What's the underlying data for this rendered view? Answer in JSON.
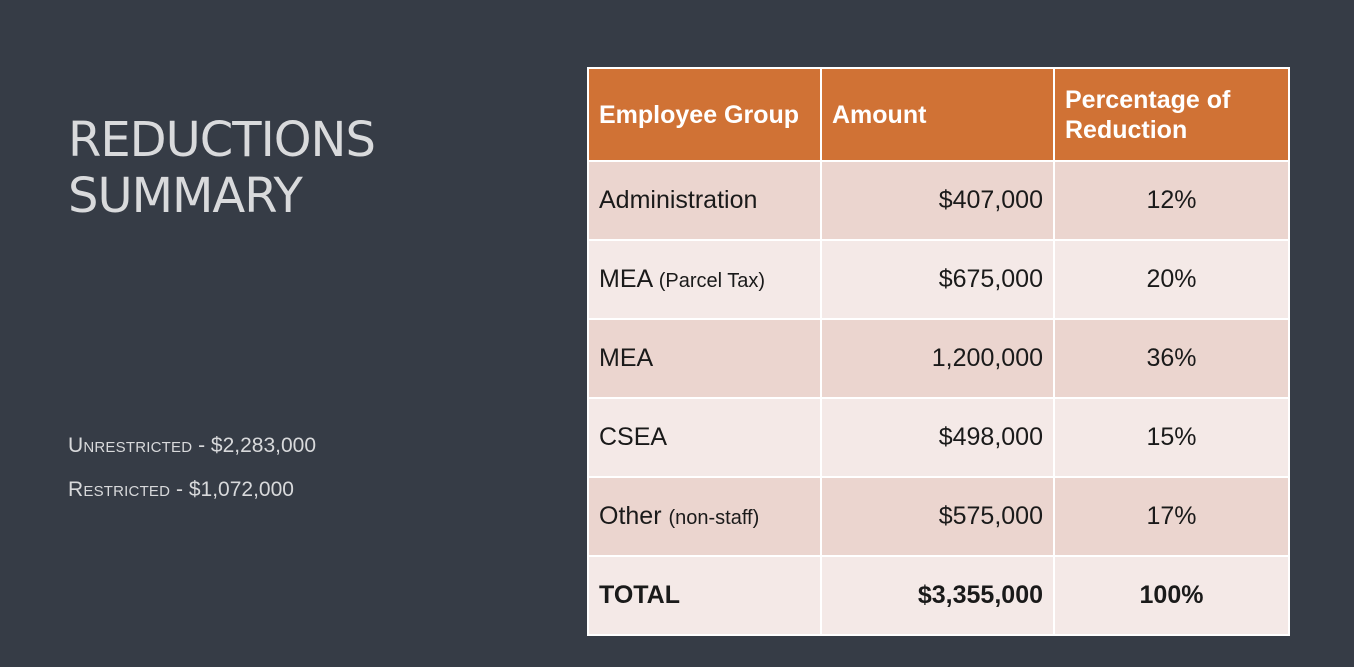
{
  "title": {
    "line1": "REDUCTIONS",
    "line2": "SUMMARY"
  },
  "notes": [
    {
      "label": "Unrestricted",
      "value": " - $2,283,000"
    },
    {
      "label": "Restricted",
      "value": " - $1,072,000"
    }
  ],
  "table": {
    "headers": [
      "Employee Group",
      "Amount",
      "Percentage of Reduction"
    ],
    "rows": [
      {
        "group": "Administration",
        "suffix": "",
        "amount": "$407,000",
        "percent": "12%"
      },
      {
        "group": "MEA",
        "suffix": "(Parcel Tax)",
        "amount": "$675,000",
        "percent": "20%"
      },
      {
        "group": "MEA",
        "suffix": "",
        "amount": "1,200,000",
        "percent": "36%"
      },
      {
        "group": "CSEA",
        "suffix": "",
        "amount": "$498,000",
        "percent": "15%"
      },
      {
        "group": "Other",
        "suffix": "(non-staff)",
        "amount": "$575,000",
        "percent": "17%"
      }
    ],
    "total": {
      "label": "TOTAL",
      "amount": "$3,355,000",
      "percent": "100%"
    }
  },
  "colors": {
    "background": "#363c46",
    "header": "#d07235",
    "row_dark": "#ebd5cf",
    "row_light": "#f4e9e7"
  }
}
